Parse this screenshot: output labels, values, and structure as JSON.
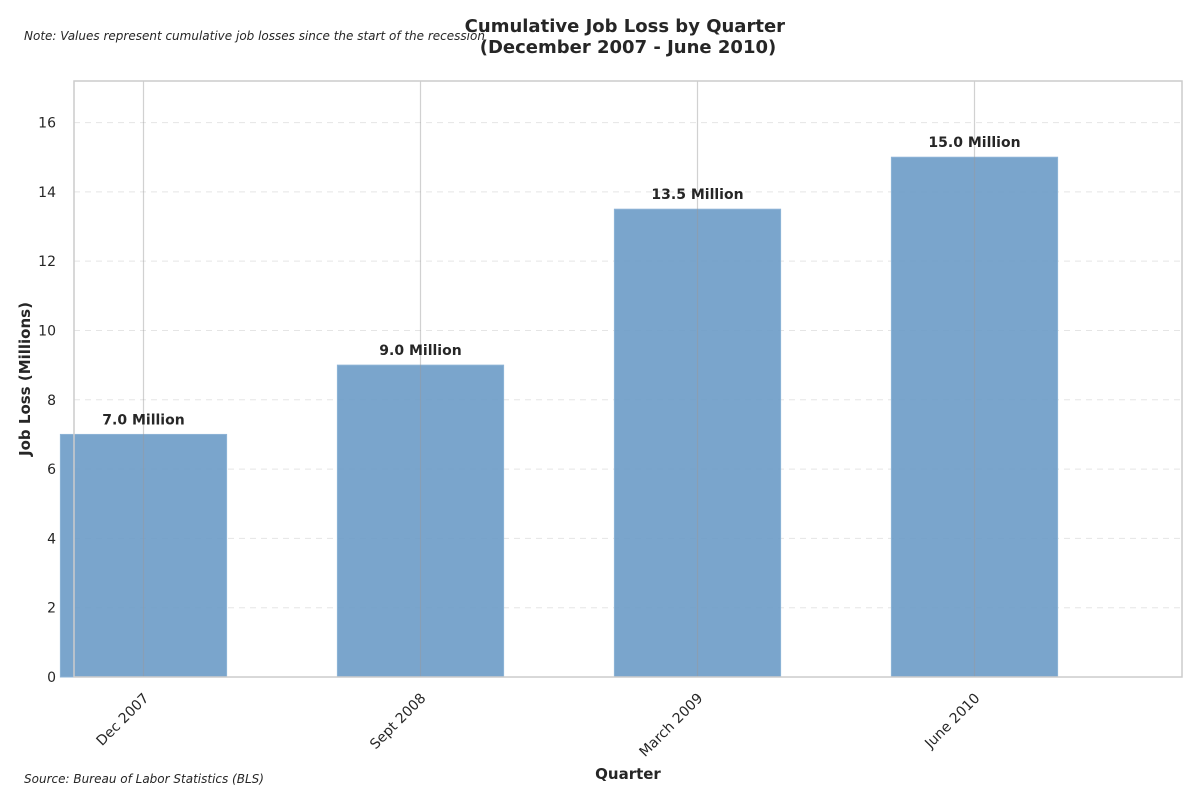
{
  "note": "Note: Values represent cumulative job losses since the start of the recession",
  "source": "Source: Bureau of Labor Statistics (BLS)",
  "colors": {
    "bar": "#6b9bc6",
    "bar_edge": "#8db3d6",
    "grid": "#e5e5e5",
    "axis": "#cccccc",
    "vline": "#999999"
  },
  "chart_data": {
    "type": "bar",
    "title": [
      "Cumulative Job Loss by Quarter",
      "(December 2007 - June 2010)"
    ],
    "xlabel": "Quarter",
    "ylabel": "Job Loss (Millions)",
    "categories": [
      "Dec 2007",
      "Sept 2008",
      "March 2009",
      "June 2010"
    ],
    "values": [
      7.0,
      9.0,
      13.5,
      15.0
    ],
    "data_labels": [
      "7.0 Million",
      "9.0 Million",
      "13.5 Million",
      "15.0 Million"
    ],
    "ylim": [
      0,
      17.2
    ],
    "yticks": [
      0,
      2,
      4,
      6,
      8,
      10,
      12,
      14,
      16
    ],
    "grid": "horizontal dashed",
    "legend": "none"
  }
}
